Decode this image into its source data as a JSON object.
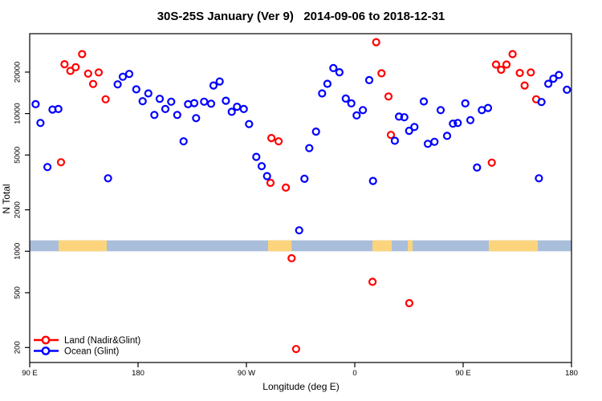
{
  "chart_data": {
    "type": "scatter",
    "title": "30S-25S January (Ver 9)   2014-09-06 to 2018-12-31",
    "xlabel": "Longitude (deg E)",
    "ylabel": "N Total",
    "x_axis": {
      "span_deg": [
        90,
        540
      ],
      "ticks": [
        {
          "deg": 90,
          "label": "90 E"
        },
        {
          "deg": 180,
          "label": "180"
        },
        {
          "deg": 270,
          "label": "90 W"
        },
        {
          "deg": 360,
          "label": "0"
        },
        {
          "deg": 450,
          "label": "90 E"
        },
        {
          "deg": 540,
          "label": "180"
        }
      ]
    },
    "y_axis": {
      "scale": "log",
      "ticks": [
        200,
        500,
        1000,
        2000,
        5000,
        10000,
        20000
      ],
      "range": [
        156,
        36000
      ]
    },
    "legend": [
      {
        "label": "Land (Nadir&Glint)",
        "color": "#FF0000"
      },
      {
        "label": "Ocean (Glint)",
        "color": "#0000FF"
      }
    ],
    "band": {
      "value_range": [
        1000,
        1200
      ],
      "ocean_color": "#A9BEDA",
      "land_color": "#FCD47C",
      "land_segments_deg": [
        [
          114,
          154
        ],
        [
          288,
          307.5
        ],
        [
          374.7,
          390.7
        ],
        [
          404,
          408
        ],
        [
          471.3,
          512
        ]
      ]
    },
    "series": [
      {
        "name": "Land (Nadir&Glint)",
        "color": "#FF0000",
        "points": [
          [
            118.9,
            22800
          ],
          [
            123.8,
            20400
          ],
          [
            128.2,
            21700
          ],
          [
            133.5,
            27000
          ],
          [
            138.5,
            19500
          ],
          [
            142.7,
            16400
          ],
          [
            147.3,
            19900
          ],
          [
            153.1,
            12700
          ],
          [
            116,
            4430
          ],
          [
            290,
            3140
          ],
          [
            290.7,
            6640
          ],
          [
            296.7,
            6290
          ],
          [
            302.7,
            2900
          ],
          [
            307.5,
            890
          ],
          [
            311.3,
            195
          ],
          [
            374.7,
            600
          ],
          [
            377.8,
            33000
          ],
          [
            382.2,
            19600
          ],
          [
            388,
            13300
          ],
          [
            390,
            7000
          ],
          [
            405.3,
            420
          ],
          [
            473.8,
            4400
          ],
          [
            477.3,
            22700
          ],
          [
            481.5,
            20800
          ],
          [
            486,
            22700
          ],
          [
            491.1,
            27000
          ],
          [
            497.1,
            19700
          ],
          [
            501.1,
            16000
          ],
          [
            506.2,
            19900
          ],
          [
            510.7,
            12700
          ]
        ]
      },
      {
        "name": "Ocean (Glint)",
        "color": "#0000FF",
        "points": [
          [
            94.9,
            11700
          ],
          [
            98.9,
            8550
          ],
          [
            104.7,
            4090
          ],
          [
            108.9,
            10700
          ],
          [
            113.8,
            10800
          ],
          [
            155.1,
            3390
          ],
          [
            163.1,
            16300
          ],
          [
            167.3,
            18500
          ],
          [
            172.7,
            19400
          ],
          [
            178.5,
            15000
          ],
          [
            183.8,
            12300
          ],
          [
            188.5,
            14000
          ],
          [
            193.5,
            9780
          ],
          [
            198,
            12800
          ],
          [
            202.7,
            10800
          ],
          [
            207.5,
            12200
          ],
          [
            212.5,
            9780
          ],
          [
            217.8,
            6290
          ],
          [
            221.5,
            11700
          ],
          [
            226.7,
            11900
          ],
          [
            228.2,
            9270
          ],
          [
            234.9,
            12200
          ],
          [
            240.7,
            11800
          ],
          [
            242.7,
            16000
          ],
          [
            247.8,
            17100
          ],
          [
            252.9,
            12400
          ],
          [
            257.8,
            10300
          ],
          [
            262.2,
            11200
          ],
          [
            267.8,
            10800
          ],
          [
            272.2,
            8390
          ],
          [
            278.2,
            4850
          ],
          [
            282.7,
            4150
          ],
          [
            287.1,
            3515
          ],
          [
            313.8,
            1420
          ],
          [
            318.2,
            3360
          ],
          [
            322.2,
            5610
          ],
          [
            327.8,
            7400
          ],
          [
            332.9,
            14000
          ],
          [
            337.3,
            16450
          ],
          [
            342.2,
            21400
          ],
          [
            347.3,
            19950
          ],
          [
            352.5,
            12850
          ],
          [
            357.1,
            11850
          ],
          [
            361.5,
            9690
          ],
          [
            366.7,
            10590
          ],
          [
            372,
            17500
          ],
          [
            375.1,
            3240
          ],
          [
            393.3,
            6350
          ],
          [
            396.7,
            9500
          ],
          [
            401.1,
            9400
          ],
          [
            405.1,
            7500
          ],
          [
            409.5,
            7990
          ],
          [
            417.3,
            12240
          ],
          [
            420.7,
            6030
          ],
          [
            426.2,
            6240
          ],
          [
            431.3,
            10590
          ],
          [
            436.7,
            6890
          ],
          [
            441.5,
            8450
          ],
          [
            445.5,
            8550
          ],
          [
            451.8,
            11850
          ],
          [
            456,
            8960
          ],
          [
            461.5,
            4055
          ],
          [
            465.5,
            10590
          ],
          [
            470.7,
            10990
          ],
          [
            512.9,
            3390
          ],
          [
            515.1,
            12130
          ],
          [
            520.7,
            16450
          ],
          [
            524.9,
            17920
          ],
          [
            529.5,
            19060
          ],
          [
            536.2,
            14900
          ]
        ]
      }
    ]
  }
}
